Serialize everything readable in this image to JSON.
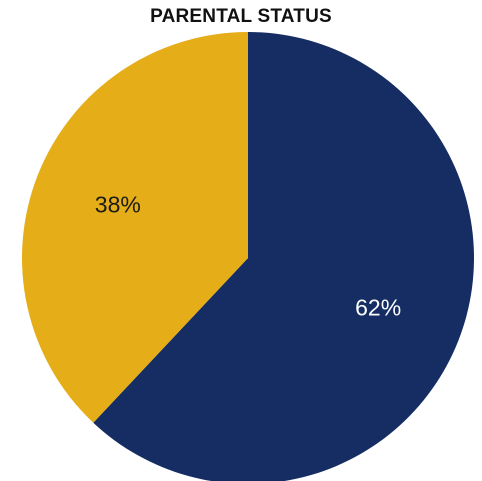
{
  "chart_data": {
    "type": "pie",
    "title": "PARENTAL STATUS",
    "slices": [
      {
        "value": 62,
        "label": "62%",
        "color": "#152D63",
        "label_color": "#ffffff"
      },
      {
        "value": 38,
        "label": "38%",
        "color": "#E5AD17",
        "label_color": "#1a1a1a"
      }
    ],
    "start": "12 o'clock",
    "direction": "clockwise",
    "legend": "none"
  }
}
